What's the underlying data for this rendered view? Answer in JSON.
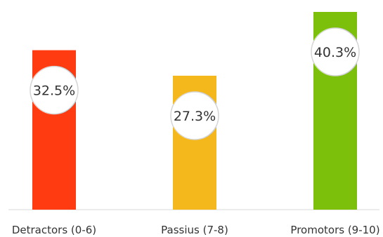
{
  "chart_data": {
    "type": "bar",
    "categories": [
      "Detractors (0-6)",
      "Passius (7-8)",
      "Promotors (9-10)"
    ],
    "values": [
      32.5,
      27.3,
      40.3
    ],
    "value_labels": [
      "32.5%",
      "27.3%",
      "40.3%"
    ],
    "colors": [
      "#ff3b12",
      "#f4b71c",
      "#7cc00c"
    ],
    "ylim": [
      0,
      40.3
    ],
    "title": "",
    "xlabel": "",
    "ylabel": "",
    "grid": false,
    "legend": "none"
  }
}
